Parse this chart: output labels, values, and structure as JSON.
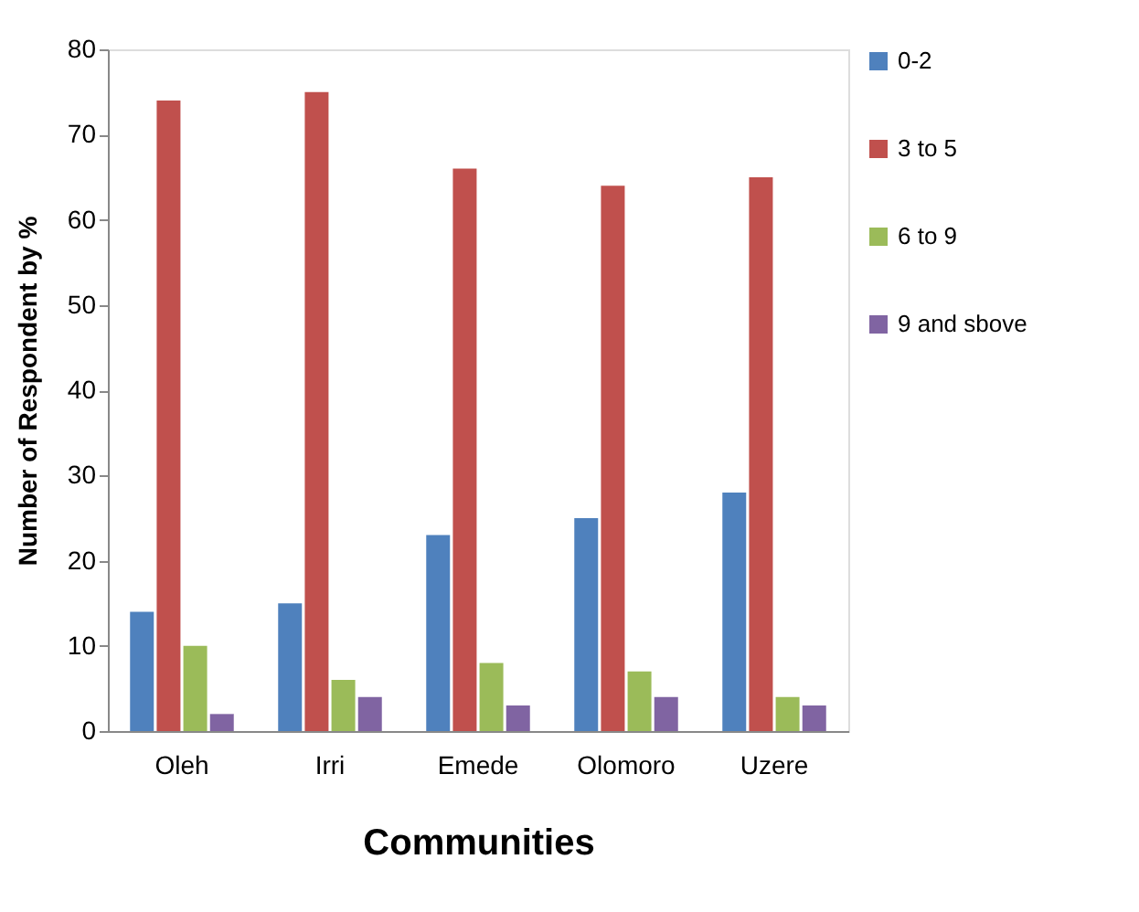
{
  "chart_data": {
    "type": "bar",
    "xlabel": "Communities",
    "ylabel": "Number of Respondent by %",
    "categories": [
      "Oleh",
      "Irri",
      "Emede",
      "Olomoro",
      "Uzere"
    ],
    "series": [
      {
        "name": "0-2",
        "color": "#4f81bd",
        "values": [
          14,
          15,
          23,
          25,
          28
        ]
      },
      {
        "name": "3 to 5",
        "color": "#c0504d",
        "values": [
          74,
          75,
          66,
          64,
          65
        ]
      },
      {
        "name": "6 to 9",
        "color": "#9bbb59",
        "values": [
          10,
          6,
          8,
          7,
          4
        ]
      },
      {
        "name": "9 and sbove",
        "color": "#8064a2",
        "values": [
          2,
          4,
          3,
          4,
          3
        ]
      }
    ],
    "ylim": [
      0,
      80
    ],
    "yticks": [
      0,
      10,
      20,
      30,
      40,
      50,
      60,
      70,
      80
    ],
    "grid": false,
    "legend": "right"
  }
}
